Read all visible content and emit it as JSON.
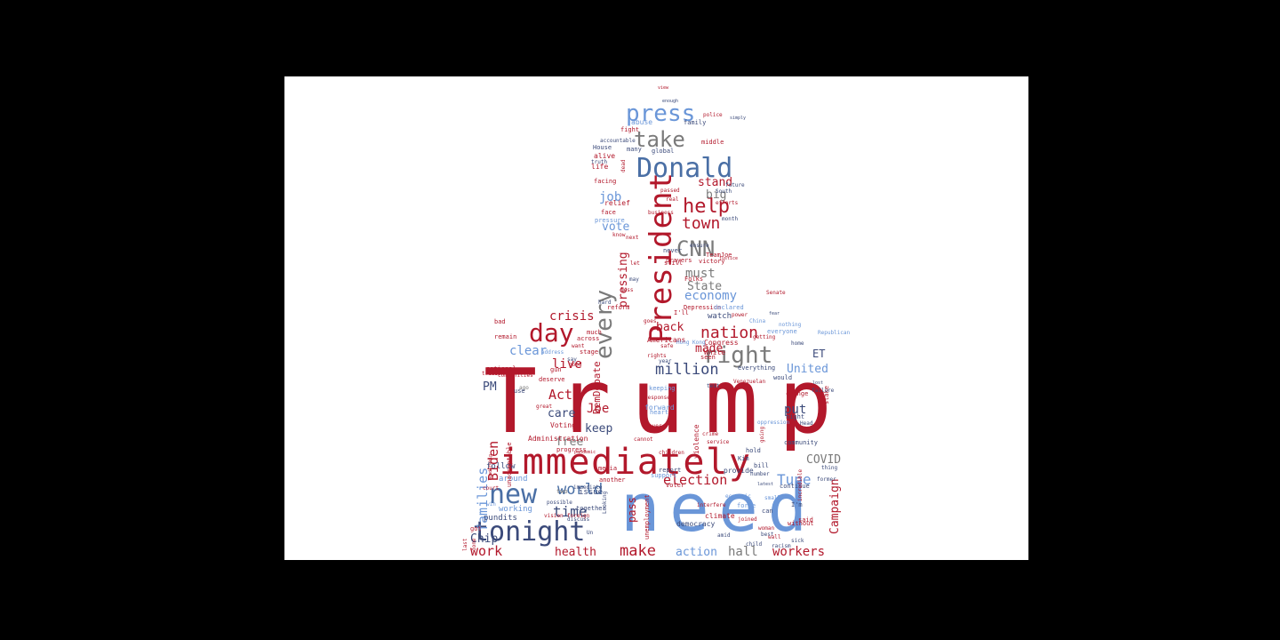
{
  "colors": {
    "background": "#000000",
    "panel": "#ffffff",
    "red": "#b2182b",
    "blue": "#6a96d8",
    "navy": "#3b4a7a",
    "steel": "#4a6fa5",
    "gray": "#7a7a7a"
  },
  "words": [
    {
      "text": "Trump",
      "color": "red"
    },
    {
      "text": "need",
      "color": "blue"
    },
    {
      "text": "immediately",
      "color": "red"
    },
    {
      "text": "President",
      "color": "red"
    },
    {
      "text": "Donald",
      "color": "steel"
    },
    {
      "text": "tonight",
      "color": "navy"
    },
    {
      "text": "new",
      "color": "steel"
    },
    {
      "text": "press",
      "color": "blue"
    },
    {
      "text": "take",
      "color": "gray"
    },
    {
      "text": "help",
      "color": "red"
    },
    {
      "text": "CNN",
      "color": "gray"
    },
    {
      "text": "right",
      "color": "gray"
    },
    {
      "text": "day",
      "color": "red"
    },
    {
      "text": "every",
      "color": "gray"
    },
    {
      "text": "nation",
      "color": "red"
    },
    {
      "text": "town",
      "color": "red"
    },
    {
      "text": "million",
      "color": "navy"
    },
    {
      "text": "world",
      "color": "steel"
    },
    {
      "text": "election",
      "color": "red"
    },
    {
      "text": "Tune",
      "color": "blue"
    },
    {
      "text": "time",
      "color": "navy"
    },
    {
      "text": "make",
      "color": "red"
    },
    {
      "text": "work",
      "color": "red"
    },
    {
      "text": "Chip",
      "color": "navy"
    },
    {
      "text": "families",
      "color": "blue"
    },
    {
      "text": "Biden",
      "color": "red"
    },
    {
      "text": "Joe",
      "color": "red"
    },
    {
      "text": "clear",
      "color": "blue"
    },
    {
      "text": "live",
      "color": "red"
    },
    {
      "text": "Act",
      "color": "red"
    },
    {
      "text": "crisis",
      "color": "red"
    },
    {
      "text": "economy",
      "color": "blue"
    },
    {
      "text": "must",
      "color": "gray"
    },
    {
      "text": "State",
      "color": "gray"
    },
    {
      "text": "stand",
      "color": "red"
    },
    {
      "text": "big",
      "color": "gray"
    },
    {
      "text": "job",
      "color": "blue"
    },
    {
      "text": "vote",
      "color": "blue"
    },
    {
      "text": "pressing",
      "color": "red"
    },
    {
      "text": "back",
      "color": "red"
    },
    {
      "text": "made",
      "color": "red"
    },
    {
      "text": "United",
      "color": "blue"
    },
    {
      "text": "COVID",
      "color": "gray"
    },
    {
      "text": "put",
      "color": "navy"
    },
    {
      "text": "keep",
      "color": "navy"
    },
    {
      "text": "care",
      "color": "navy"
    },
    {
      "text": "free",
      "color": "gray"
    },
    {
      "text": "PM",
      "color": "navy"
    },
    {
      "text": "DemDebate",
      "color": "red"
    },
    {
      "text": "hall",
      "color": "gray"
    },
    {
      "text": "action",
      "color": "blue"
    },
    {
      "text": "health",
      "color": "red"
    },
    {
      "text": "workers",
      "color": "red"
    },
    {
      "text": "Campaign",
      "color": "red"
    },
    {
      "text": "pass",
      "color": "red"
    },
    {
      "text": "ET",
      "color": "navy"
    },
    {
      "text": "watch",
      "color": "navy"
    },
    {
      "text": "issue",
      "color": "navy"
    },
    {
      "text": "around",
      "color": "blue"
    },
    {
      "text": "follow",
      "color": "navy"
    },
    {
      "text": "pundits",
      "color": "navy"
    },
    {
      "text": "working",
      "color": "blue"
    },
    {
      "text": "Administration",
      "color": "red"
    },
    {
      "text": "Voting",
      "color": "red"
    },
    {
      "text": "democracy",
      "color": "navy"
    },
    {
      "text": "violence",
      "color": "red"
    },
    {
      "text": "White",
      "color": "red"
    },
    {
      "text": "Americans",
      "color": "red"
    },
    {
      "text": "Congress",
      "color": "red"
    },
    {
      "text": "Depression",
      "color": "red"
    },
    {
      "text": "relief",
      "color": "red"
    },
    {
      "text": "face",
      "color": "red"
    },
    {
      "text": "life",
      "color": "red"
    },
    {
      "text": "alive",
      "color": "red"
    },
    {
      "text": "facing",
      "color": "red"
    },
    {
      "text": "pressure",
      "color": "blue"
    },
    {
      "text": "abuse",
      "color": "blue"
    },
    {
      "text": "fight",
      "color": "red"
    },
    {
      "text": "family",
      "color": "navy"
    },
    {
      "text": "accountable",
      "color": "navy"
    },
    {
      "text": "House",
      "color": "navy"
    },
    {
      "text": "global",
      "color": "navy"
    },
    {
      "text": "efforts",
      "color": "red"
    },
    {
      "text": "future",
      "color": "navy"
    },
    {
      "text": "South",
      "color": "navy"
    },
    {
      "text": "victory",
      "color": "red"
    },
    {
      "text": "TeamJoe",
      "color": "red"
    },
    {
      "text": "prayers",
      "color": "red"
    },
    {
      "text": "Folks",
      "color": "red"
    },
    {
      "text": "never",
      "color": "navy"
    },
    {
      "text": "still",
      "color": "red"
    },
    {
      "text": "ensure",
      "color": "navy"
    },
    {
      "text": "month",
      "color": "navy"
    },
    {
      "text": "reform",
      "color": "red"
    },
    {
      "text": "declared",
      "color": "blue"
    },
    {
      "text": "I'll",
      "color": "red"
    },
    {
      "text": "everyone",
      "color": "blue"
    },
    {
      "text": "everything",
      "color": "navy"
    },
    {
      "text": "across",
      "color": "red"
    },
    {
      "text": "address",
      "color": "blue"
    },
    {
      "text": "remain",
      "color": "red"
    },
    {
      "text": "want",
      "color": "red"
    },
    {
      "text": "much",
      "color": "red"
    },
    {
      "text": "stage",
      "color": "red"
    },
    {
      "text": "national",
      "color": "red"
    },
    {
      "text": "communities",
      "color": "red"
    },
    {
      "text": "gun",
      "color": "red"
    },
    {
      "text": "deserve",
      "color": "red"
    },
    {
      "text": "great",
      "color": "red"
    },
    {
      "text": "ago",
      "color": "gray"
    },
    {
      "text": "progress",
      "color": "red"
    },
    {
      "text": "media",
      "color": "red"
    },
    {
      "text": "forward",
      "color": "blue"
    },
    {
      "text": "heart",
      "color": "blue"
    },
    {
      "text": "keeping",
      "color": "blue"
    },
    {
      "text": "response",
      "color": "red"
    },
    {
      "text": "another",
      "color": "red"
    },
    {
      "text": "cannot",
      "color": "red"
    },
    {
      "text": "children",
      "color": "red"
    },
    {
      "text": "report",
      "color": "navy"
    },
    {
      "text": "support",
      "color": "blue"
    },
    {
      "text": "voter",
      "color": "red"
    },
    {
      "text": "together",
      "color": "navy"
    },
    {
      "text": "two",
      "color": "gray"
    },
    {
      "text": "immediate",
      "color": "navy"
    },
    {
      "text": "Looking",
      "color": "navy"
    },
    {
      "text": "unemployment",
      "color": "red"
    },
    {
      "text": "climate",
      "color": "red"
    },
    {
      "text": "provide",
      "color": "navy"
    },
    {
      "text": "bill",
      "color": "navy"
    },
    {
      "text": "hold",
      "color": "navy"
    },
    {
      "text": "force",
      "color": "blue"
    },
    {
      "text": "continue",
      "color": "navy"
    },
    {
      "text": "night",
      "color": "navy"
    },
    {
      "text": "change",
      "color": "red"
    },
    {
      "text": "community",
      "color": "navy"
    },
    {
      "text": "would",
      "color": "navy"
    },
    {
      "text": "stake",
      "color": "red"
    },
    {
      "text": "failure",
      "color": "navy"
    },
    {
      "text": "Republican",
      "color": "blue"
    },
    {
      "text": "home",
      "color": "navy"
    },
    {
      "text": "without",
      "color": "red"
    },
    {
      "text": "said",
      "color": "red"
    },
    {
      "text": "I'm",
      "color": "navy"
    },
    {
      "text": "can",
      "color": "navy"
    },
    {
      "text": "joined",
      "color": "red"
    },
    {
      "text": "best",
      "color": "navy"
    },
    {
      "text": "economic",
      "color": "blue"
    },
    {
      "text": "small",
      "color": "blue"
    },
    {
      "text": "possible",
      "color": "navy"
    },
    {
      "text": "vision",
      "color": "red"
    },
    {
      "text": "foreign",
      "color": "red"
    },
    {
      "text": "safe",
      "color": "red"
    },
    {
      "text": "goes",
      "color": "red"
    },
    {
      "text": "seen",
      "color": "red"
    },
    {
      "text": "power",
      "color": "red"
    },
    {
      "text": "China",
      "color": "blue"
    },
    {
      "text": "nothing",
      "color": "blue"
    },
    {
      "text": "fear",
      "color": "navy"
    },
    {
      "text": "getting",
      "color": "red"
    },
    {
      "text": "justice",
      "color": "red"
    },
    {
      "text": "next",
      "color": "red"
    },
    {
      "text": "know",
      "color": "red"
    },
    {
      "text": "dead",
      "color": "red"
    },
    {
      "text": "treason",
      "color": "red"
    },
    {
      "text": "leadership",
      "color": "red"
    },
    {
      "text": "unacceptable",
      "color": "red"
    },
    {
      "text": "Venezuelan",
      "color": "red"
    },
    {
      "text": "Kim",
      "color": "navy"
    },
    {
      "text": "number",
      "color": "navy"
    },
    {
      "text": "latest",
      "color": "navy"
    },
    {
      "text": "thing",
      "color": "navy"
    },
    {
      "text": "former",
      "color": "navy"
    },
    {
      "text": "lost",
      "color": "navy"
    },
    {
      "text": "Head",
      "color": "navy"
    },
    {
      "text": "incredible",
      "color": "red"
    },
    {
      "text": "going",
      "color": "red"
    },
    {
      "text": "pandemic",
      "color": "red"
    },
    {
      "text": "use",
      "color": "navy"
    },
    {
      "text": "got",
      "color": "red"
    },
    {
      "text": "last",
      "color": "red"
    },
    {
      "text": "done",
      "color": "red"
    },
    {
      "text": "court",
      "color": "red"
    },
    {
      "text": "win",
      "color": "blue"
    },
    {
      "text": "ever",
      "color": "red"
    },
    {
      "text": "may",
      "color": "navy"
    },
    {
      "text": "hard",
      "color": "navy"
    },
    {
      "text": "bad",
      "color": "red"
    },
    {
      "text": "many",
      "color": "navy"
    },
    {
      "text": "truth",
      "color": "navy"
    },
    {
      "text": "police",
      "color": "red"
    },
    {
      "text": "simply",
      "color": "navy"
    },
    {
      "text": "middle",
      "color": "red"
    },
    {
      "text": "enough",
      "color": "navy"
    },
    {
      "text": "oppression",
      "color": "blue"
    },
    {
      "text": "interfere",
      "color": "red"
    },
    {
      "text": "discuss",
      "color": "navy"
    },
    {
      "text": "Un",
      "color": "navy"
    },
    {
      "text": "say",
      "color": "navy"
    },
    {
      "text": "good",
      "color": "red"
    },
    {
      "text": "test",
      "color": "navy"
    },
    {
      "text": "Hong",
      "color": "blue"
    },
    {
      "text": "Kong",
      "color": "blue"
    },
    {
      "text": "rights",
      "color": "red"
    },
    {
      "text": "year",
      "color": "navy"
    },
    {
      "text": "view",
      "color": "red"
    },
    {
      "text": "less",
      "color": "red"
    },
    {
      "text": "let",
      "color": "red"
    },
    {
      "text": "business",
      "color": "red"
    },
    {
      "text": "passed",
      "color": "red"
    },
    {
      "text": "real",
      "color": "red"
    },
    {
      "text": "Senate",
      "color": "red"
    },
    {
      "text": "woman",
      "color": "red"
    },
    {
      "text": "wall",
      "color": "red"
    },
    {
      "text": "crime",
      "color": "red"
    },
    {
      "text": "service",
      "color": "red"
    },
    {
      "text": "amid",
      "color": "navy"
    },
    {
      "text": "child",
      "color": "navy"
    },
    {
      "text": "racism",
      "color": "navy"
    },
    {
      "text": "sick",
      "color": "navy"
    }
  ]
}
